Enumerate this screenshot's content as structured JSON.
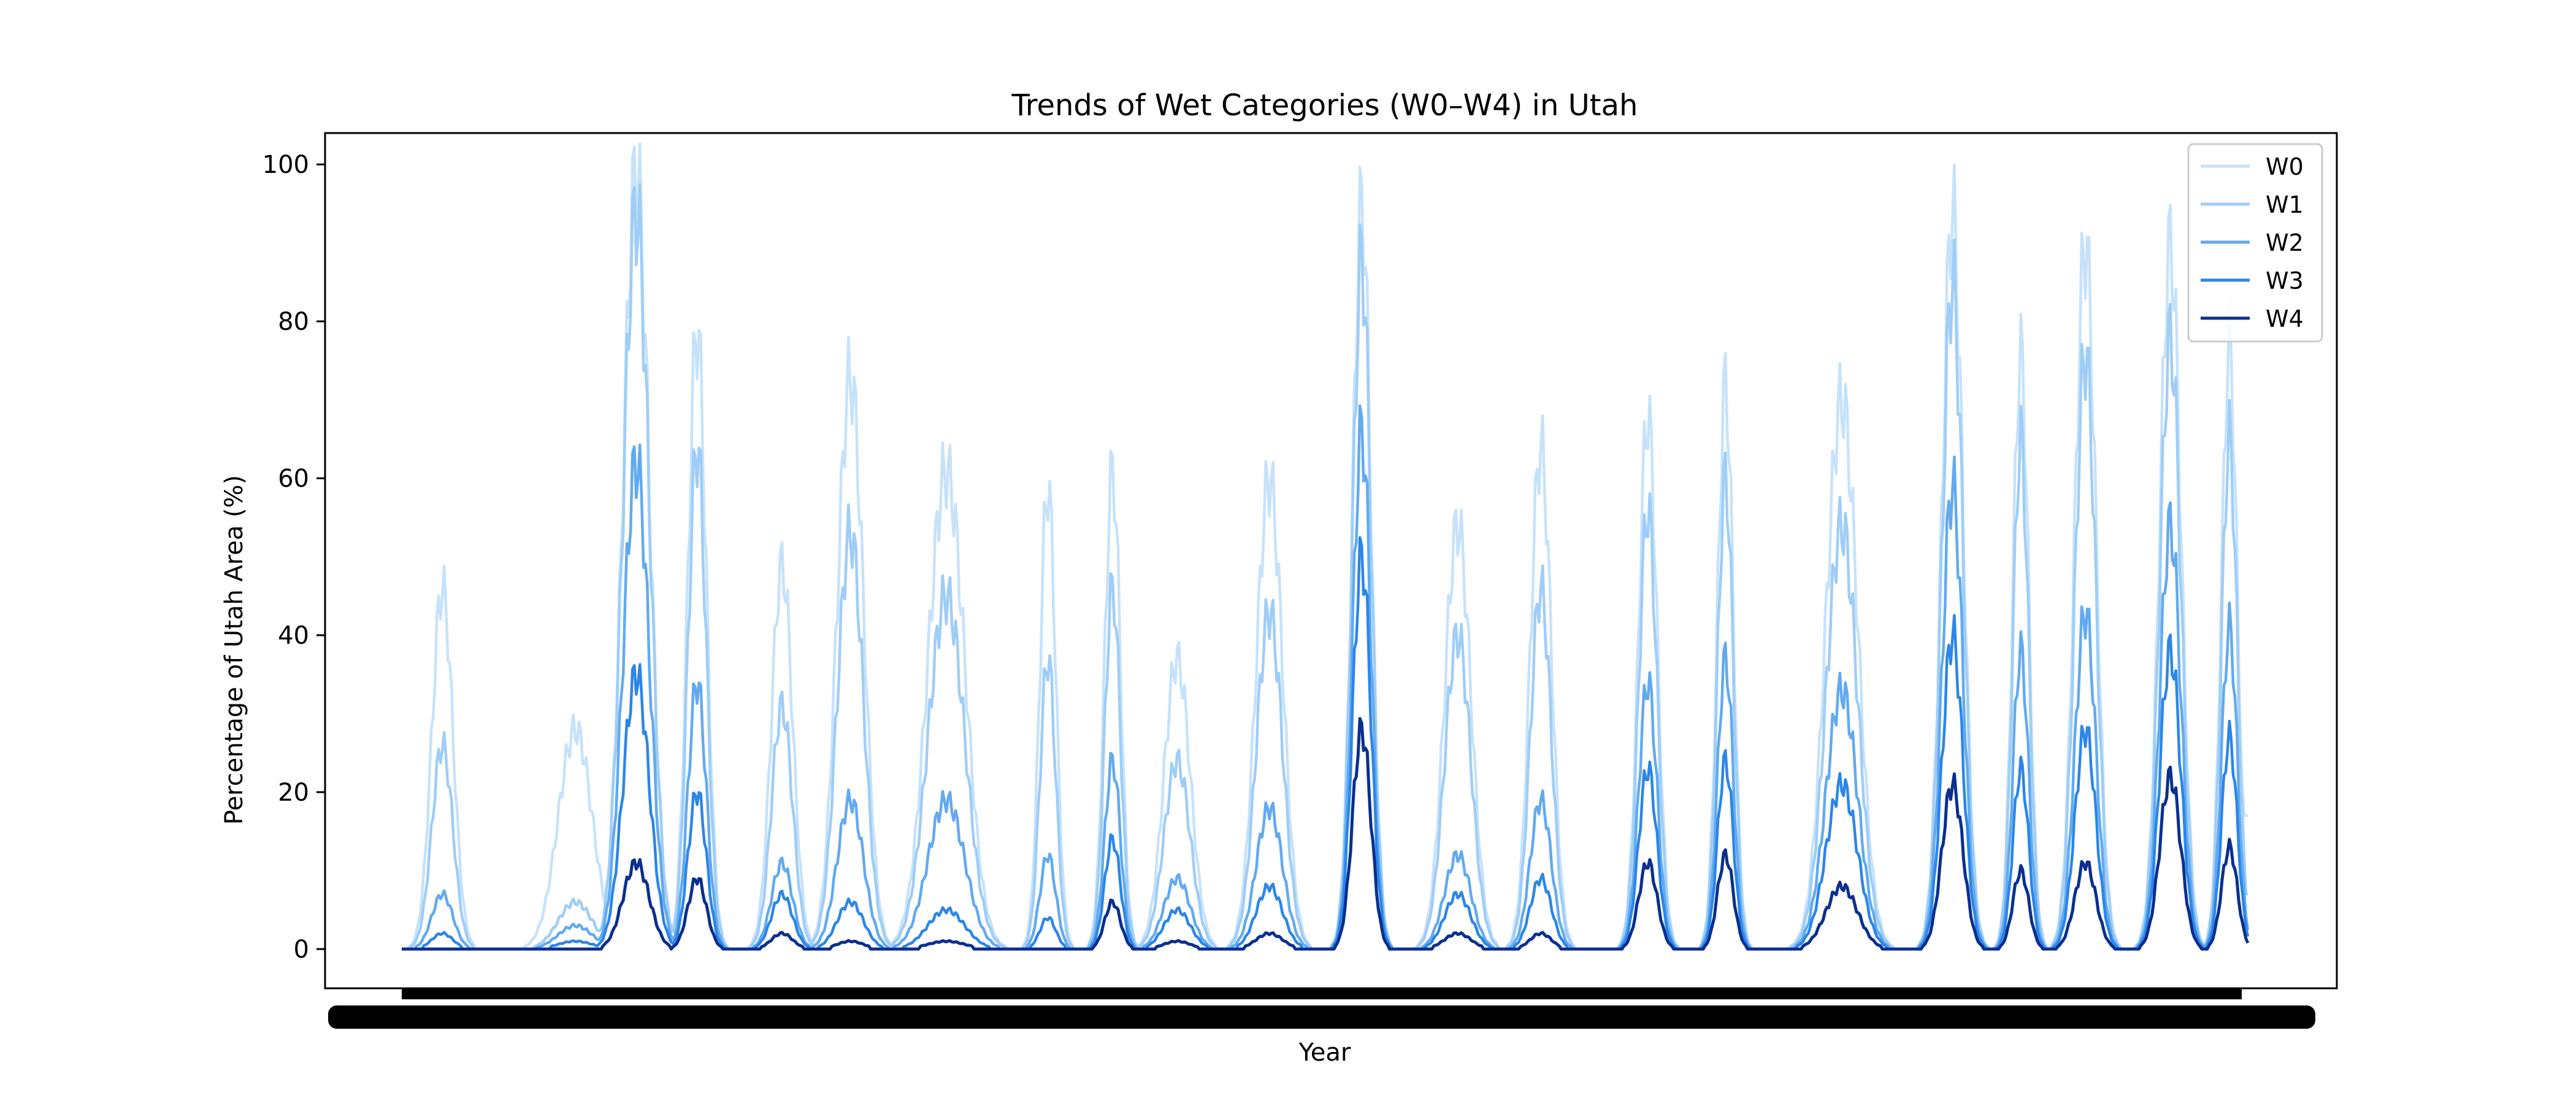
{
  "chart_data": {
    "type": "line",
    "title": "Trends of Wet Categories (W0–W4) in Utah",
    "xlabel": "Year",
    "ylabel": "Percentage of Utah Area (%)",
    "ylim": [
      -5,
      104
    ],
    "yticks": [
      0,
      20,
      40,
      60,
      80,
      100
    ],
    "xlim": [
      0,
      1000
    ],
    "x_tick_labels_overlapping": true,
    "grid": false,
    "legend_position": "top-right",
    "peaks": [
      {
        "x": 22,
        "w": 8
      },
      {
        "x": 94,
        "w": 13
      },
      {
        "x": 127,
        "w": 10
      },
      {
        "x": 160,
        "w": 7
      },
      {
        "x": 206,
        "w": 8
      },
      {
        "x": 243,
        "w": 10
      },
      {
        "x": 295,
        "w": 14
      },
      {
        "x": 350,
        "w": 6
      },
      {
        "x": 385,
        "w": 6
      },
      {
        "x": 420,
        "w": 10
      },
      {
        "x": 470,
        "w": 10
      },
      {
        "x": 520,
        "w": 7
      },
      {
        "x": 572,
        "w": 10
      },
      {
        "x": 617,
        "w": 8
      },
      {
        "x": 675,
        "w": 7
      },
      {
        "x": 717,
        "w": 6
      },
      {
        "x": 780,
        "w": 12
      },
      {
        "x": 840,
        "w": 8
      },
      {
        "x": 877,
        "w": 6
      },
      {
        "x": 912,
        "w": 8
      },
      {
        "x": 958,
        "w": 8
      },
      {
        "x": 990,
        "w": 6
      }
    ],
    "series": [
      {
        "name": "W0",
        "color": "#c6e2fb",
        "peak_values": [
          46,
          28,
          99,
          79,
          49,
          73,
          61,
          59,
          61,
          37,
          60,
          95,
          54,
          64,
          68,
          72,
          70,
          94,
          76,
          90,
          90,
          77
        ],
        "end_value": 17
      },
      {
        "name": "W1",
        "color": "#9fcdf7",
        "peak_values": [
          26,
          6,
          94,
          64,
          31,
          53,
          45,
          37,
          46,
          24,
          43,
          88,
          40,
          46,
          56,
          60,
          54,
          85,
          65,
          76,
          78,
          65
        ],
        "end_value": 7
      },
      {
        "name": "W2",
        "color": "#62aaf0",
        "peak_values": [
          7,
          3,
          62,
          34,
          11,
          19,
          19,
          12,
          24,
          9,
          18,
          66,
          12,
          19,
          34,
          37,
          33,
          59,
          38,
          43,
          54,
          41
        ],
        "end_value": 1
      },
      {
        "name": "W3",
        "color": "#2b86e8",
        "peak_values": [
          2,
          1,
          35,
          20,
          7,
          6,
          5,
          4,
          14,
          5,
          8,
          50,
          7,
          9,
          23,
          24,
          21,
          40,
          23,
          28,
          38,
          27
        ],
        "end_value": 0
      },
      {
        "name": "W4",
        "color": "#0a2f8f",
        "peak_values": [
          0,
          0,
          11,
          9,
          2,
          1,
          1,
          0,
          6,
          1,
          2,
          28,
          2,
          2,
          11,
          12,
          8,
          21,
          10,
          11,
          22,
          13
        ],
        "end_value": 0
      }
    ]
  }
}
